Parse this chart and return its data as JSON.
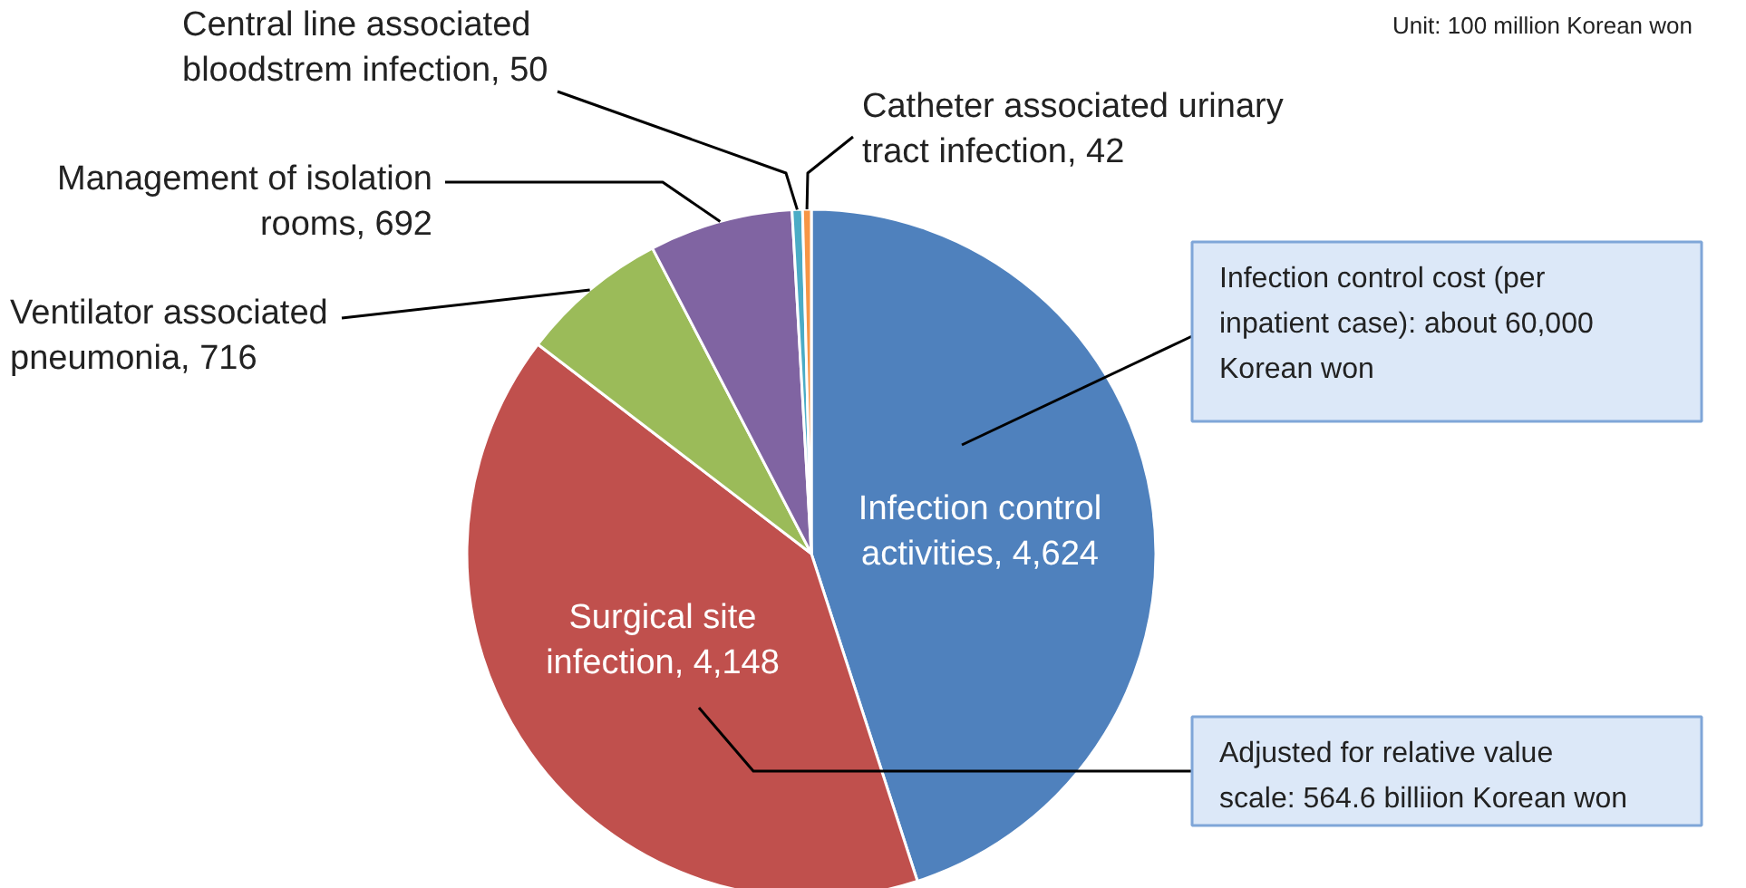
{
  "chart_data": {
    "type": "pie",
    "categories": [
      "Infection control activities",
      "Surgical site infection",
      "Ventilator associated pneumonia",
      "Management of isolation rooms",
      "Central line associated bloodstrem infection",
      "Catheter associated urinary tract infection"
    ],
    "values": [
      4624,
      4148,
      716,
      692,
      50,
      42
    ],
    "colors": [
      "#4f81bd",
      "#c0504d",
      "#9bbb59",
      "#8064a2",
      "#4bacc6",
      "#f79646"
    ],
    "value_labels": [
      "4,624",
      "4,148",
      "716",
      "692",
      "50",
      "42"
    ],
    "annotations": [
      "Unit: 100 million Korean won",
      "Infection control cost (per inpatient case): about 60,000 Korean won",
      "Adjusted for relative value scale: 564.6 billiion Korean won"
    ]
  }
}
